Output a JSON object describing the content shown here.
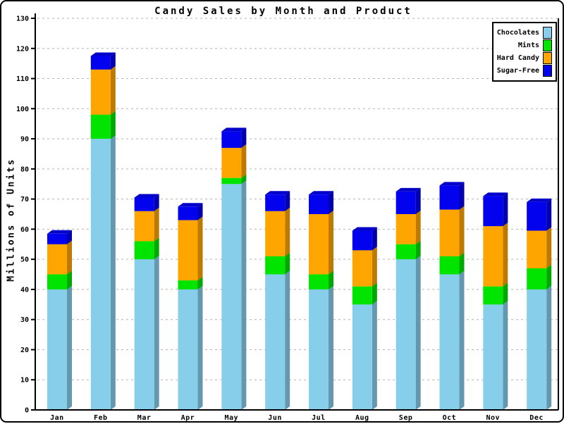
{
  "window": {
    "background": "#ffffff",
    "border_color": "#000000"
  },
  "chart_data": {
    "type": "bar",
    "stacked": true,
    "pseudo_3d": true,
    "title": "Candy Sales by Month and Product",
    "xlabel": "",
    "ylabel": "Millions of Units",
    "ylim": [
      0,
      130
    ],
    "ytick_step": 10,
    "yticks": [
      0,
      10,
      20,
      30,
      40,
      50,
      60,
      70,
      80,
      90,
      100,
      110,
      120,
      130
    ],
    "grid": "horizontal-dashed",
    "gridline_color": "#b3b3b3",
    "axis_color": "#000000",
    "legend_position": "top-right",
    "categories": [
      "Jan",
      "Feb",
      "Mar",
      "Apr",
      "May",
      "Jun",
      "Jul",
      "Aug",
      "Sep",
      "Oct",
      "Nov",
      "Dec"
    ],
    "series": [
      {
        "name": "Chocolates",
        "color": "#87CEEB",
        "values": [
          40,
          90,
          50,
          40,
          75,
          45,
          40,
          35,
          50,
          45,
          35,
          40
        ]
      },
      {
        "name": "Mints",
        "color": "#00E400",
        "values": [
          5,
          8,
          6,
          3,
          2,
          6,
          5,
          6,
          5,
          6,
          6,
          7
        ]
      },
      {
        "name": "Hard Candy",
        "color": "#FFA500",
        "values": [
          10,
          15,
          10,
          20,
          10,
          15,
          20,
          12,
          10,
          15.5,
          20,
          12.5
        ]
      },
      {
        "name": "Sugar-Free",
        "color": "#0202EE",
        "values": [
          3.5,
          4.5,
          4.5,
          4.5,
          5.5,
          5.5,
          6.5,
          6.5,
          7.5,
          8,
          10,
          9.5
        ]
      }
    ]
  },
  "legend": {
    "entries": [
      "Chocolates",
      "Mints",
      "Hard Candy",
      "Sugar-Free"
    ]
  }
}
